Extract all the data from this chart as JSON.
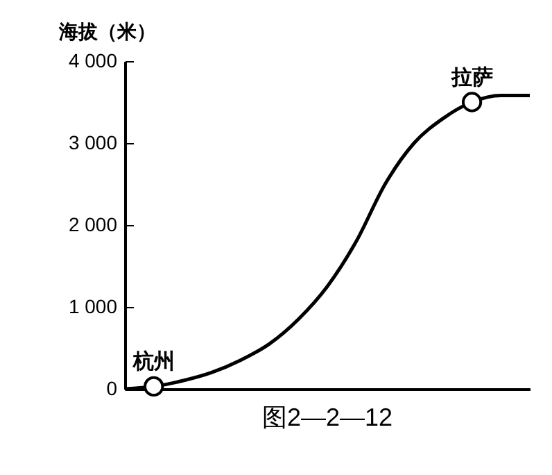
{
  "chart_data": {
    "type": "line",
    "ylabel": "海拔（米）",
    "categories": [
      null,
      null,
      null,
      null,
      null,
      null,
      null,
      null,
      null,
      null,
      null,
      null,
      null,
      null,
      null
    ],
    "series": [
      {
        "color": "#000000",
        "values": [
          0,
          30,
          100,
          200,
          350,
          550,
          850,
          1250,
          1800,
          2500,
          3000,
          3300,
          3500,
          3580,
          3580
        ]
      },
      {
        "type": "scatter",
        "marker": "circle",
        "color": "#000000",
        "values": [
          null,
          30,
          null,
          null,
          null,
          null,
          null,
          null,
          null,
          null,
          null,
          null,
          3500,
          null,
          null
        ]
      }
    ],
    "ylim": [
      0,
      4000
    ],
    "yticks": [
      {
        "value": 0,
        "label": "0"
      },
      {
        "value": 1000,
        "label": "1 000"
      },
      {
        "value": 2000,
        "label": "2 000"
      },
      {
        "value": 3000,
        "label": "3 000"
      },
      {
        "value": 4000,
        "label": "4 000"
      }
    ],
    "grid": false,
    "tick_labels": "y",
    "annotations": [
      "杭州",
      "拉萨",
      "图2—2—12"
    ]
  }
}
